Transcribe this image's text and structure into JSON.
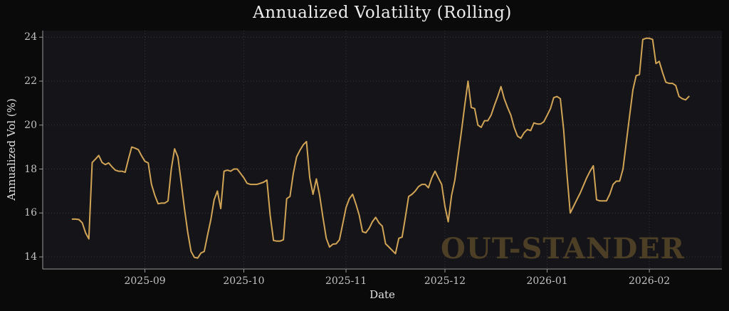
{
  "title": "Annualized Volatility (Rolling)",
  "xlabel": "Date",
  "ylabel": "Annualized Vol (%)",
  "watermark": "OUT-STANDER",
  "colors": {
    "figure_bg": "#0a0a0b",
    "plot_bg": "#141419",
    "grid": "#424248",
    "spine": "#999999",
    "tick_text": "#c2c2c2",
    "title_text": "#ececec",
    "line": "#d2a456",
    "watermark": "#4c3f25"
  },
  "chart_data": {
    "type": "line",
    "title": "Annualized Volatility (Rolling)",
    "xlabel": "Date",
    "ylabel": "Annualized Vol (%)",
    "grid": "dotted",
    "legend": "none",
    "ylim": [
      13.45,
      24.3
    ],
    "y_ticks": [
      14,
      16,
      18,
      20,
      22,
      24
    ],
    "xlim": [
      "2025-08-01",
      "2026-02-23"
    ],
    "x_ticks": [
      {
        "date": "2025-09-01",
        "label": "2025-09"
      },
      {
        "date": "2025-10-01",
        "label": "2025-10"
      },
      {
        "date": "2025-11-01",
        "label": "2025-11"
      },
      {
        "date": "2025-12-01",
        "label": "2025-12"
      },
      {
        "date": "2026-01-01",
        "label": "2026-01"
      },
      {
        "date": "2026-02-01",
        "label": "2026-02"
      }
    ],
    "series": [
      {
        "name": "Annualized Vol (%)",
        "start_date": "2025-08-10",
        "interval_days": 1,
        "values": [
          15.72,
          15.72,
          15.7,
          15.55,
          15.1,
          14.82,
          18.3,
          18.45,
          18.62,
          18.3,
          18.2,
          18.28,
          18.1,
          17.95,
          17.9,
          17.9,
          17.85,
          18.45,
          19.0,
          18.95,
          18.88,
          18.6,
          18.35,
          18.28,
          17.3,
          16.8,
          16.42,
          16.45,
          16.45,
          16.55,
          18.0,
          18.92,
          18.55,
          17.4,
          16.2,
          15.1,
          14.25,
          13.98,
          13.95,
          14.18,
          14.25,
          15.0,
          15.7,
          16.6,
          17.0,
          16.2,
          17.9,
          17.95,
          17.9,
          18.0,
          18.0,
          17.8,
          17.6,
          17.35,
          17.3,
          17.3,
          17.3,
          17.35,
          17.4,
          17.5,
          15.9,
          14.75,
          14.72,
          14.72,
          14.78,
          16.65,
          16.75,
          17.8,
          18.55,
          18.85,
          19.1,
          19.25,
          17.6,
          16.85,
          17.55,
          16.8,
          15.8,
          14.85,
          14.45,
          14.58,
          14.6,
          14.78,
          15.5,
          16.25,
          16.65,
          16.85,
          16.4,
          15.9,
          15.15,
          15.1,
          15.3,
          15.6,
          15.8,
          15.55,
          15.4,
          14.6,
          14.45,
          14.3,
          14.15,
          14.85,
          14.9,
          15.8,
          16.75,
          16.85,
          17.0,
          17.2,
          17.3,
          17.3,
          17.15,
          17.6,
          17.9,
          17.6,
          17.3,
          16.3,
          15.6,
          16.8,
          17.5,
          18.6,
          19.7,
          20.9,
          22.0,
          20.8,
          20.75,
          20.0,
          19.9,
          20.2,
          20.2,
          20.45,
          20.9,
          21.3,
          21.75,
          21.2,
          20.8,
          20.45,
          19.9,
          19.5,
          19.4,
          19.65,
          19.8,
          19.75,
          20.1,
          20.05,
          20.05,
          20.15,
          20.45,
          20.75,
          21.25,
          21.3,
          21.2,
          19.8,
          17.8,
          16.0,
          16.3,
          16.6,
          16.9,
          17.25,
          17.6,
          17.9,
          18.15,
          16.6,
          16.55,
          16.55,
          16.55,
          16.85,
          17.3,
          17.45,
          17.45,
          18.0,
          19.2,
          20.4,
          21.6,
          22.25,
          22.3,
          23.9,
          23.95,
          23.95,
          23.9,
          22.8,
          22.9,
          22.4,
          21.95,
          21.9,
          21.9,
          21.8,
          21.3,
          21.2,
          21.15,
          21.3
        ]
      }
    ]
  }
}
